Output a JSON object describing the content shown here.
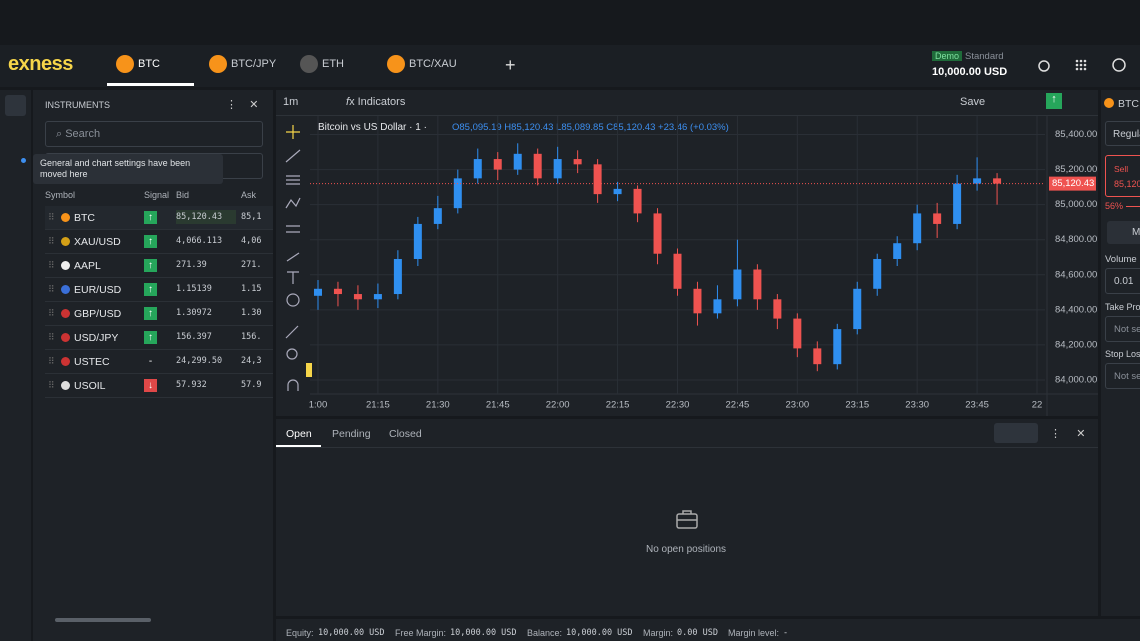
{
  "header": {
    "logo": "exness",
    "tabs": [
      "BTC",
      "BTC/JPY",
      "ETH",
      "BTC/XAU"
    ],
    "account": {
      "badge": "Demo",
      "type": "Standard",
      "balance": "10,000.00 USD"
    }
  },
  "instruments": {
    "title": "INSTRUMENTS",
    "search": "Search",
    "tooltip": "General and chart settings have been moved here",
    "columns": [
      "Symbol",
      "Signal",
      "Bid",
      "Ask"
    ],
    "rows": [
      [
        "BTC",
        "↑",
        "85,120.43",
        "85,1"
      ],
      [
        "XAU/USD",
        "↑",
        "4,066.113",
        "4,06"
      ],
      [
        "AAPL",
        "↑",
        "271.39",
        "271."
      ],
      [
        "EUR/USD",
        "↑",
        "1.15139",
        "1.15"
      ],
      [
        "GBP/USD",
        "↑",
        "1.30972",
        "1.30"
      ],
      [
        "USD/JPY",
        "↑",
        "156.397",
        "156."
      ],
      [
        "USTEC",
        "-",
        "24,299.50",
        "24,3"
      ],
      [
        "USOIL",
        "↓",
        "57.932",
        "57.9"
      ]
    ]
  },
  "toolbar": {
    "interval": "1m",
    "indicators": "Indicators",
    "save": "Save"
  },
  "legend": {
    "title": "Bitcoin vs US Dollar · 1 ·",
    "open": "O85,095.19",
    "high": "H85,120.43",
    "low": "L85,089.85",
    "close": "C85,120.43",
    "change": "+23.46 (+0.03%)"
  },
  "chart_data": {
    "type": "candlestick",
    "price_label": "85,120.43",
    "up_color": "#2f8ff0",
    "down_color": "#ef5350",
    "grid": true,
    "x": [
      "21:00",
      "21:05",
      "21:10",
      "21:15",
      "21:20",
      "21:25",
      "21:30",
      "21:35",
      "21:40",
      "21:45",
      "21:50",
      "21:55",
      "22:00",
      "22:05",
      "22:10",
      "22:15",
      "22:20",
      "22:25",
      "22:30",
      "22:35",
      "22:40",
      "22:45",
      "22:50",
      "22:55",
      "23:00",
      "23:05",
      "23:10",
      "23:15",
      "23:20",
      "23:25",
      "23:30",
      "23:35",
      "23:40",
      "23:45",
      "23:50"
    ],
    "open": [
      84480,
      84520,
      84490,
      84460,
      84490,
      84690,
      84890,
      84980,
      85150,
      85260,
      85200,
      85290,
      85150,
      85260,
      85230,
      85060,
      85090,
      84950,
      84720,
      84520,
      84380,
      84460,
      84630,
      84460,
      84350,
      84180,
      84090,
      84290,
      84520,
      84690,
      84780,
      84950,
      84890,
      85120,
      85150
    ],
    "high": [
      84570,
      84560,
      84540,
      84550,
      84740,
      84930,
      85050,
      85200,
      85320,
      85300,
      85350,
      85320,
      85330,
      85310,
      85260,
      85130,
      85110,
      84980,
      84750,
      84560,
      84540,
      84800,
      84660,
      84490,
      84380,
      84220,
      84320,
      84560,
      84720,
      84820,
      85000,
      85010,
      85170,
      85270,
      85180
    ],
    "low": [
      84400,
      84420,
      84400,
      84410,
      84460,
      84650,
      84860,
      84950,
      85120,
      85140,
      85170,
      85110,
      85120,
      85180,
      85010,
      85020,
      84900,
      84660,
      84480,
      84310,
      84350,
      84420,
      84400,
      84290,
      84130,
      84050,
      84060,
      84260,
      84480,
      84650,
      84740,
      84810,
      84860,
      85080,
      85000
    ],
    "close": [
      84520,
      84490,
      84460,
      84490,
      84690,
      84890,
      84980,
      85150,
      85260,
      85200,
      85290,
      85150,
      85260,
      85230,
      85060,
      85090,
      84950,
      84720,
      84520,
      84380,
      84460,
      84630,
      84460,
      84350,
      84180,
      84090,
      84290,
      84520,
      84690,
      84780,
      84950,
      84890,
      85120,
      85150,
      85120
    ],
    "xlim": [
      "20:58",
      "00:02"
    ],
    "xticks": [
      {
        "value": "21:00",
        "label": "1:00"
      },
      "21:15",
      "21:30",
      "21:45",
      "22:00",
      "22:15",
      "22:30",
      "22:45",
      "23:00",
      "23:15",
      "23:30",
      "23:45",
      {
        "value": "00:00",
        "label": "22"
      }
    ],
    "ylim": [
      83800,
      85500
    ],
    "yticks": [
      {
        "value": 84000,
        "label": "84,000.00"
      },
      {
        "value": 84200,
        "label": "84,200.00"
      },
      {
        "value": 84400,
        "label": "84,400.00"
      },
      {
        "value": 84600,
        "label": "84,600.00"
      },
      {
        "value": 84800,
        "label": "84,800.00"
      },
      {
        "value": 85000,
        "label": "85,000.00"
      },
      {
        "value": 85200,
        "label": "85,200.00"
      },
      {
        "value": 85400,
        "label": "85,400.00"
      }
    ]
  },
  "positions": {
    "tabs": [
      "Open",
      "Pending",
      "Closed"
    ],
    "empty": "No open positions"
  },
  "order": {
    "symbol": "BTC",
    "mode": "Regula",
    "sell": "Sell",
    "sell_price": "85,120",
    "percent": "56%",
    "m": "M",
    "volume_label": "Volume",
    "volume": "0.01",
    "tp_label": "Take Pro",
    "tp": "Not se",
    "sl_label": "Stop Los",
    "sl": "Not se"
  },
  "footer": [
    [
      "Equity:",
      "10,000.00 USD"
    ],
    [
      "Free Margin:",
      "10,000.00 USD"
    ],
    [
      "Balance:",
      "10,000.00 USD"
    ],
    [
      "Margin:",
      "0.00 USD"
    ],
    [
      "Margin level:",
      "-"
    ]
  ]
}
